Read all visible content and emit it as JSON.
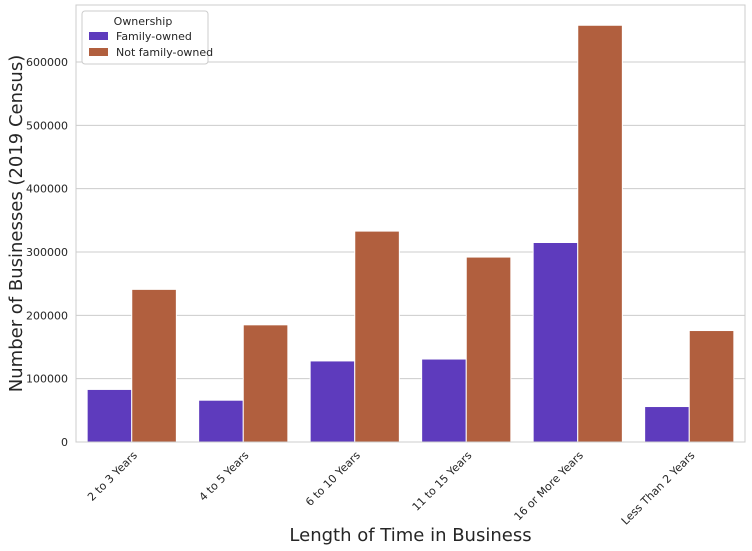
{
  "colors": {
    "family_owned": "#5e3bbd",
    "not_family_owned": "#b15f3e",
    "grid": "#cccccc",
    "frame": "#cccccc",
    "background": "#ffffff"
  },
  "chart_data": {
    "type": "bar",
    "title": "",
    "xlabel": "Length of Time in Business",
    "ylabel": "Number of Businesses (2019 Census)",
    "categories": [
      "2 to 3 Years",
      "4 to 5 Years",
      "6 to 10 Years",
      "11 to 15 Years",
      "16 or More Years",
      "Less Than 2 Years"
    ],
    "series": [
      {
        "name": "Family-owned",
        "values": [
          83000,
          66000,
          128000,
          131000,
          315000,
          56000
        ]
      },
      {
        "name": "Not family-owned",
        "values": [
          241000,
          185000,
          333000,
          292000,
          658000,
          176000
        ]
      }
    ],
    "ylim": [
      0,
      690000
    ],
    "yticks": [
      0,
      100000,
      200000,
      300000,
      400000,
      500000,
      600000
    ],
    "ytick_labels": [
      "0",
      "100000",
      "200000",
      "300000",
      "400000",
      "500000",
      "600000"
    ],
    "grid": true,
    "legend": {
      "title": "Ownership",
      "placement": "top-left",
      "entries": [
        "Family-owned",
        "Not family-owned"
      ]
    }
  }
}
